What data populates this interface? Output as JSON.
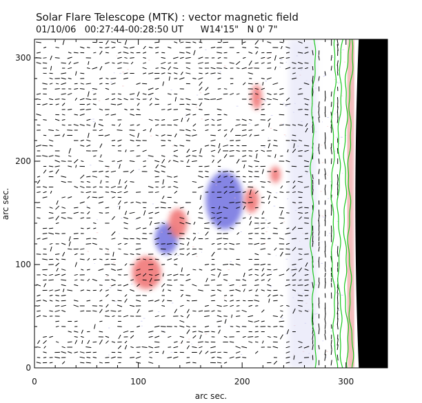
{
  "chart_data": {
    "type": "vector-field-map",
    "title": "Solar Flare Telescope (MTK) : vector magnetic field",
    "subtitle": "01/10/06   00:27:44-00:28:50 UT      W14'15\"   N 0' 7\"",
    "xlabel": "arc sec.",
    "ylabel": "arc sec.",
    "xlim": [
      0,
      340
    ],
    "ylim": [
      0,
      318
    ],
    "xticks": [
      0,
      100,
      200,
      300
    ],
    "yticks": [
      0,
      100,
      200,
      300
    ],
    "xtick_labels": [
      "0",
      "100",
      "200",
      "300"
    ],
    "ytick_labels": [
      "0",
      "100",
      "200",
      "300"
    ],
    "colors": {
      "positive_polarity": "#f07070",
      "negative_polarity": "#6f6fe0",
      "contours": "#19c81d",
      "vectors": "#000000",
      "limb": "#000000"
    },
    "polarity_patches": [
      {
        "polarity": "negative",
        "x": 183,
        "y": 162,
        "rx": 18,
        "ry": 28
      },
      {
        "polarity": "negative",
        "x": 127,
        "y": 125,
        "rx": 11,
        "ry": 15
      },
      {
        "polarity": "positive",
        "x": 108,
        "y": 92,
        "rx": 14,
        "ry": 16
      },
      {
        "polarity": "positive",
        "x": 138,
        "y": 140,
        "rx": 9,
        "ry": 14
      },
      {
        "polarity": "positive",
        "x": 209,
        "y": 162,
        "rx": 7,
        "ry": 12
      },
      {
        "polarity": "positive",
        "x": 214,
        "y": 262,
        "rx": 5,
        "ry": 12
      },
      {
        "polarity": "positive",
        "x": 232,
        "y": 187,
        "rx": 5,
        "ry": 8
      }
    ]
  }
}
